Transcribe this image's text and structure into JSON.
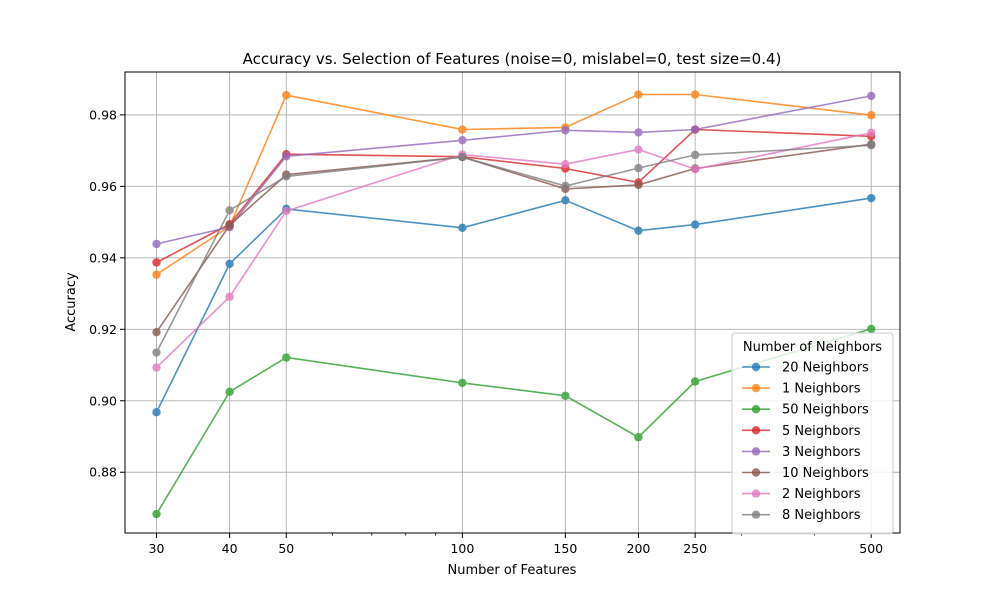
{
  "chart_data": {
    "type": "line",
    "title": "Accuracy vs. Selection of Features (noise=0, mislabel=0, test size=0.4)",
    "xlabel": "Number of Features",
    "ylabel": "Accuracy",
    "x_scale": "log",
    "x": [
      30,
      40,
      50,
      100,
      150,
      200,
      250,
      500
    ],
    "x_tick_labels": [
      "30",
      "40",
      "50",
      "100",
      "150",
      "200",
      "250",
      "500"
    ],
    "xlim": [
      26.5,
      560
    ],
    "ylim": [
      0.863,
      0.992
    ],
    "y_ticks": [
      0.88,
      0.9,
      0.92,
      0.94,
      0.96,
      0.98
    ],
    "y_tick_labels": [
      "0.88",
      "0.90",
      "0.92",
      "0.94",
      "0.96",
      "0.98"
    ],
    "grid": true,
    "legend": {
      "title": "Number of Neighbors",
      "placement": "lower-right"
    },
    "series": [
      {
        "name": "20 Neighbors",
        "color": "#1f77b4",
        "values": [
          0.8968,
          0.9383,
          0.9537,
          0.9484,
          0.9561,
          0.9476,
          0.9493,
          0.9567
        ]
      },
      {
        "name": "1 Neighbors",
        "color": "#ff7f0e",
        "values": [
          0.9353,
          0.9488,
          0.9855,
          0.9759,
          0.9765,
          0.9857,
          0.9857,
          0.9799
        ]
      },
      {
        "name": "50 Neighbors",
        "color": "#2ca02c",
        "values": [
          0.8683,
          0.9025,
          0.9121,
          0.905,
          0.9014,
          0.8898,
          0.9054,
          0.9201
        ]
      },
      {
        "name": "5 Neighbors",
        "color": "#d62728",
        "values": [
          0.9387,
          0.9494,
          0.969,
          0.9683,
          0.965,
          0.9611,
          0.9759,
          0.974
        ]
      },
      {
        "name": "3 Neighbors",
        "color": "#9467bd",
        "values": [
          0.9439,
          0.9486,
          0.9684,
          0.9729,
          0.9757,
          0.9751,
          0.9759,
          0.9853
        ]
      },
      {
        "name": "10 Neighbors",
        "color": "#8c564b",
        "values": [
          0.9192,
          0.9491,
          0.9633,
          0.9682,
          0.9593,
          0.9604,
          0.965,
          0.9718
        ]
      },
      {
        "name": "2 Neighbors",
        "color": "#e377c2",
        "values": [
          0.9093,
          0.9291,
          0.9531,
          0.9689,
          0.9662,
          0.9703,
          0.9648,
          0.975
        ]
      },
      {
        "name": "8 Neighbors",
        "color": "#7f7f7f",
        "values": [
          0.9135,
          0.9533,
          0.9628,
          0.9682,
          0.9601,
          0.9651,
          0.9688,
          0.9715
        ]
      }
    ]
  }
}
